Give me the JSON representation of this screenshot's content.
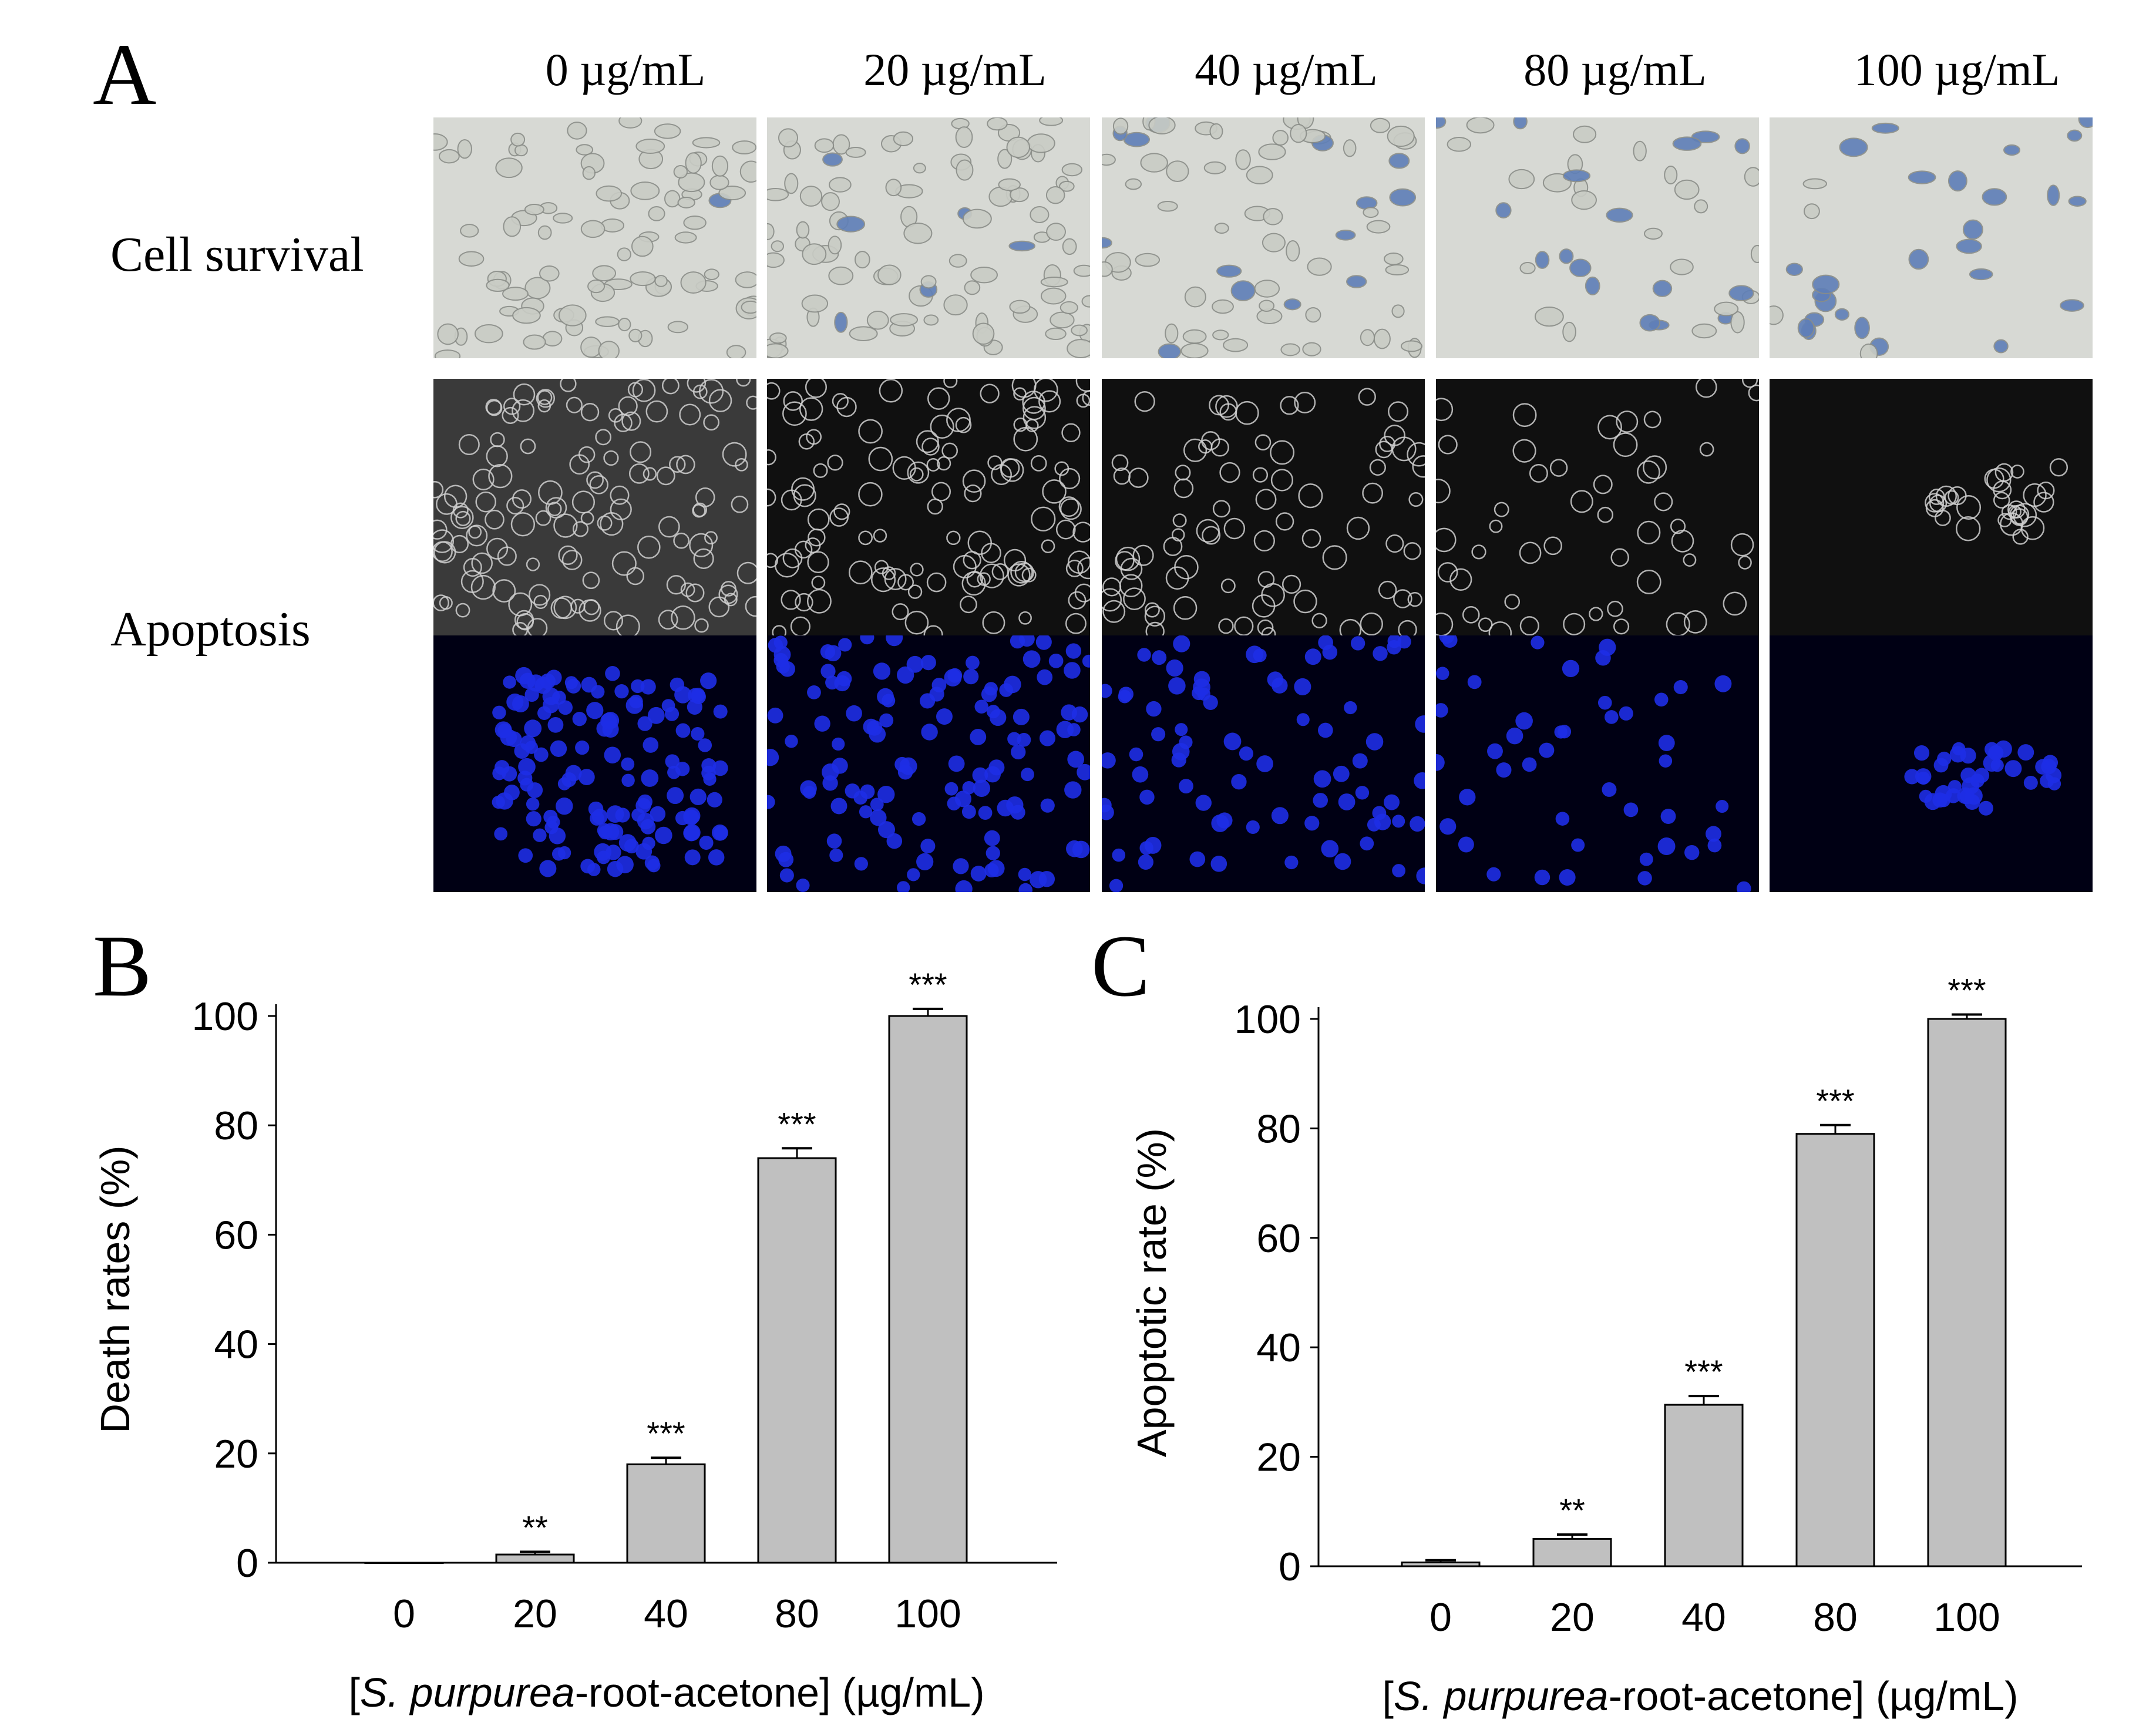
{
  "panels": {
    "a_letter": "A",
    "b_letter": "B",
    "c_letter": "C"
  },
  "panel_a": {
    "concentrations": [
      "0 µg/mL",
      "20 µg/mL",
      "40 µg/mL",
      "80 µg/mL",
      "100 µg/mL"
    ],
    "row_labels": {
      "survival": "Cell survival",
      "apoptosis": "Apoptosis"
    }
  },
  "colors": {
    "bar_fill": "#c0c0c0",
    "bar_stroke": "#000000",
    "survival_bg": "#d7d9d4",
    "dead_cell": "#5f7fb8",
    "phase_bg": "#101010",
    "dapi_bg": "#000014",
    "dapi_nucleus": "#1e2ee6"
  },
  "chart_data": [
    {
      "type": "bar",
      "categories": [
        "0",
        "20",
        "40",
        "80",
        "100"
      ],
      "values": [
        0,
        1.5,
        18,
        74,
        100
      ],
      "errors": [
        0,
        0.5,
        1.2,
        1.8,
        1.3
      ],
      "significance": [
        "",
        "**",
        "***",
        "***",
        "***"
      ],
      "ylabel": "Death rates (%)",
      "xlabel_parts": [
        "[",
        "S. purpurea",
        "-root-acetone] (µg/mL)"
      ],
      "yticks": [
        "0",
        "20",
        "40",
        "60",
        "80",
        "100"
      ],
      "ylim": [
        0,
        100
      ]
    },
    {
      "type": "bar",
      "categories": [
        "0",
        "20",
        "40",
        "80",
        "100"
      ],
      "values": [
        0.7,
        5,
        29.5,
        79,
        100
      ],
      "errors": [
        0.4,
        0.8,
        1.6,
        1.6,
        0.8
      ],
      "significance": [
        "",
        "**",
        "***",
        "***",
        "***"
      ],
      "ylabel": "Apoptotic rate (%)",
      "xlabel_parts": [
        "[",
        "S. purpurea",
        "-root-acetone] (µg/mL)"
      ],
      "yticks": [
        "0",
        "20",
        "40",
        "60",
        "80",
        "100"
      ],
      "ylim": [
        0,
        100
      ]
    }
  ]
}
